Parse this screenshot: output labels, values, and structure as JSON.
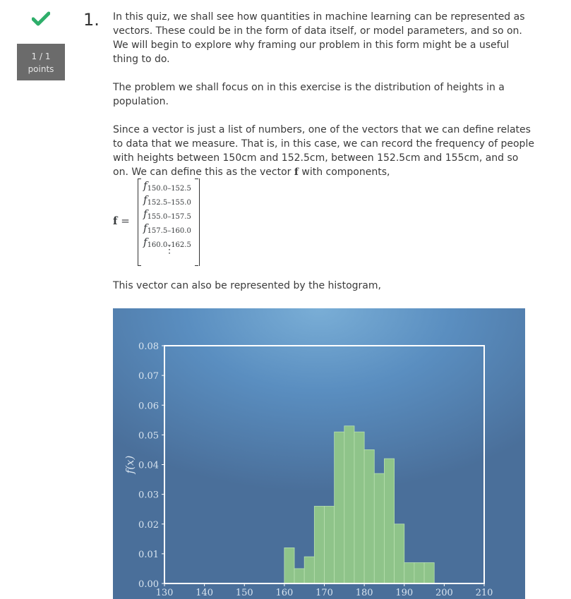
{
  "status": {
    "check_icon": "check-icon",
    "score": "1 / 1",
    "score_unit": "points"
  },
  "question": {
    "number": "1.",
    "para1": "In this quiz, we shall see how quantities in machine learning can be represented as vectors. These could be in the form of data itself, or model parameters, and so on. We will begin to explore why framing our problem in this form might be a useful thing to do.",
    "para2": "The problem we shall focus on in this exercise is the distribution of heights in a population.",
    "para3_before": "Since a vector is just a list of numbers, one of the vectors that we can define relates to data that we measure. That is, in this case, we can record the frequency of people with heights between 150cm and 152.5cm, between 152.5cm and 155cm, and so on. We can define this as the vector ",
    "para3_symbol": "f",
    "para3_after": " with components,",
    "vector_lhs": "f =",
    "vector_symbol": "f",
    "vector_rows": [
      "150.0–152.5",
      "152.5–155.0",
      "155.0–157.5",
      "157.5–160.0",
      "160.0–162.5"
    ],
    "vector_ellipsis": "⋮",
    "caption": "This vector can also be represented by the histogram,"
  },
  "chart_data": {
    "type": "bar",
    "ylabel": "f(x)",
    "xlabel": "",
    "xlim": [
      130,
      210
    ],
    "ylim": [
      0,
      0.08
    ],
    "xticks": [
      "130",
      "140",
      "150",
      "160",
      "170",
      "180",
      "190",
      "200",
      "210"
    ],
    "yticks": [
      "0.00",
      "0.01",
      "0.02",
      "0.03",
      "0.04",
      "0.05",
      "0.06",
      "0.07",
      "0.08"
    ],
    "bin_width": 2.5,
    "bins": [
      {
        "x": 160.0,
        "y": 0.012
      },
      {
        "x": 162.5,
        "y": 0.005
      },
      {
        "x": 165.0,
        "y": 0.009
      },
      {
        "x": 167.5,
        "y": 0.026
      },
      {
        "x": 170.0,
        "y": 0.026
      },
      {
        "x": 172.5,
        "y": 0.051
      },
      {
        "x": 175.0,
        "y": 0.053
      },
      {
        "x": 177.5,
        "y": 0.051
      },
      {
        "x": 180.0,
        "y": 0.045
      },
      {
        "x": 182.5,
        "y": 0.037
      },
      {
        "x": 185.0,
        "y": 0.042
      },
      {
        "x": 187.5,
        "y": 0.02
      },
      {
        "x": 190.0,
        "y": 0.007
      },
      {
        "x": 192.5,
        "y": 0.007
      },
      {
        "x": 195.0,
        "y": 0.007
      }
    ],
    "bar_color": "#8fc48a",
    "grid": false
  }
}
